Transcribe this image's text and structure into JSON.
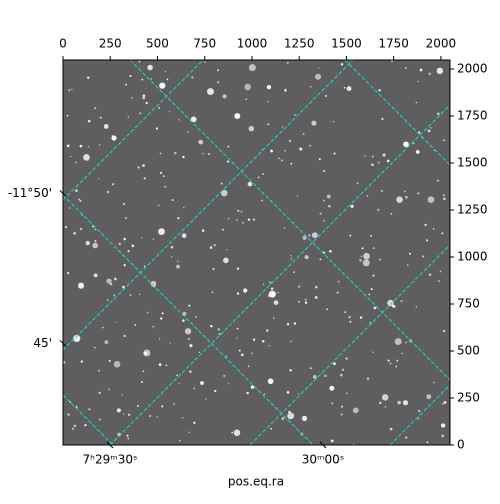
{
  "chart_data": {
    "type": "image",
    "xlim": [
      0,
      2048
    ],
    "ylim": [
      0,
      2048
    ],
    "xticks": [
      0,
      250,
      500,
      750,
      1000,
      1250,
      1500,
      1750,
      2000
    ],
    "yticks": [
      0,
      250,
      500,
      750,
      1000,
      1250,
      1500,
      1750,
      2000
    ],
    "ra_ticks": [
      {
        "value": 249,
        "label": "7ʰ29ᵐ30ˢ"
      },
      {
        "value": 1376,
        "label": "30ᵐ00ˢ"
      }
    ],
    "dec_ticks": [
      {
        "value": 1338,
        "label": "-11°50'"
      },
      {
        "value": 541,
        "label": "45'"
      }
    ],
    "xlabel": "pos.eq.ra"
  }
}
